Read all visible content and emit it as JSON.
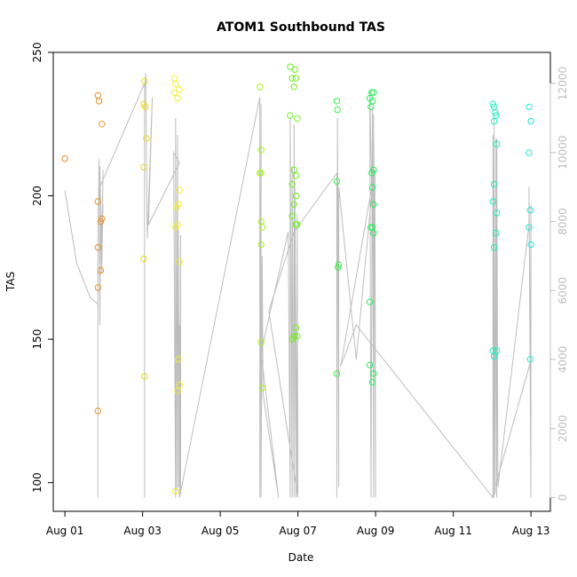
{
  "chart_data": {
    "type": "scatter",
    "title": "ATOM1 Southbound TAS",
    "xlabel": "Date",
    "ylabel": "TAS",
    "x_ticks": [
      "Aug 01",
      "Aug 03",
      "Aug 05",
      "Aug 07",
      "Aug 09",
      "Aug 11",
      "Aug 13"
    ],
    "x_tick_values": [
      1,
      3,
      5,
      7,
      9,
      11,
      13
    ],
    "xlim": [
      0.7,
      13.5
    ],
    "y_ticks": [
      100,
      150,
      200,
      250
    ],
    "ylim": [
      90,
      250
    ],
    "y2_ticks": [
      0,
      2000,
      4000,
      6000,
      8000,
      10000,
      12000
    ],
    "y2lim": [
      -400,
      12900
    ],
    "grid": false,
    "legend": "none",
    "colors": {
      "points_gradient": [
        "#e88a20",
        "#e8c21c",
        "#e8f01a",
        "#b6f01a",
        "#6af025",
        "#2af040",
        "#20e88a",
        "#20e8d8"
      ],
      "altitude_trace": "#bdbdbd",
      "axis": "#000000",
      "right_axis": "#bdbdbd"
    },
    "series": [
      {
        "color": "#e8902a",
        "points": [
          [
            1.0,
            213
          ],
          [
            1.85,
            235
          ],
          [
            1.88,
            233
          ],
          [
            1.95,
            225
          ],
          [
            1.85,
            198
          ],
          [
            1.92,
            191
          ],
          [
            1.95,
            192
          ],
          [
            1.85,
            182
          ],
          [
            1.92,
            174
          ],
          [
            1.85,
            168
          ],
          [
            1.85,
            125
          ]
        ]
      },
      {
        "color": "#e8d81e",
        "points": [
          [
            3.05,
            240
          ],
          [
            3.03,
            232
          ],
          [
            3.07,
            231
          ],
          [
            3.1,
            220
          ],
          [
            3.03,
            210
          ],
          [
            3.03,
            178
          ],
          [
            3.05,
            137
          ]
        ]
      },
      {
        "color": "#f2f02a",
        "points": [
          [
            3.82,
            241
          ],
          [
            3.85,
            239
          ],
          [
            3.95,
            237
          ],
          [
            3.82,
            236
          ],
          [
            3.9,
            234
          ],
          [
            3.95,
            202
          ],
          [
            3.92,
            197
          ],
          [
            3.88,
            196
          ],
          [
            3.9,
            190
          ],
          [
            3.85,
            189
          ],
          [
            3.95,
            177
          ],
          [
            3.92,
            143
          ],
          [
            3.95,
            134
          ],
          [
            3.9,
            132
          ],
          [
            3.85,
            97
          ]
        ]
      },
      {
        "color": "#a8f024",
        "points": [
          [
            6.02,
            238
          ],
          [
            6.05,
            216
          ],
          [
            6.05,
            208
          ],
          [
            6.02,
            208
          ],
          [
            6.05,
            191
          ],
          [
            6.08,
            189
          ],
          [
            6.05,
            183
          ],
          [
            6.05,
            149
          ],
          [
            6.08,
            133
          ]
        ]
      },
      {
        "color": "#70ee24",
        "points": [
          [
            6.8,
            245
          ],
          [
            6.92,
            244
          ],
          [
            6.85,
            241
          ],
          [
            6.95,
            241
          ],
          [
            6.9,
            238
          ],
          [
            6.8,
            228
          ],
          [
            6.98,
            227
          ],
          [
            6.9,
            209
          ],
          [
            6.95,
            207
          ],
          [
            6.85,
            204
          ],
          [
            6.95,
            200
          ],
          [
            6.9,
            197
          ],
          [
            6.85,
            193
          ],
          [
            6.95,
            190
          ],
          [
            6.98,
            190
          ],
          [
            6.85,
            150
          ],
          [
            6.9,
            151
          ],
          [
            6.95,
            154
          ],
          [
            6.98,
            151
          ]
        ]
      },
      {
        "color": "#38f040",
        "points": [
          [
            8.0,
            233
          ],
          [
            8.02,
            230
          ],
          [
            8.0,
            205
          ],
          [
            8.05,
            176
          ],
          [
            8.03,
            175
          ],
          [
            8.0,
            138
          ]
        ]
      },
      {
        "color": "#28ee58",
        "points": [
          [
            8.9,
            236
          ],
          [
            8.95,
            236
          ],
          [
            8.85,
            234
          ],
          [
            8.92,
            233
          ],
          [
            8.88,
            231
          ],
          [
            8.95,
            209
          ],
          [
            8.9,
            208
          ],
          [
            8.92,
            203
          ],
          [
            8.95,
            197
          ],
          [
            8.92,
            189
          ],
          [
            8.88,
            189
          ],
          [
            8.95,
            187
          ],
          [
            8.85,
            163
          ],
          [
            8.85,
            141
          ],
          [
            8.95,
            138
          ],
          [
            8.92,
            135
          ]
        ]
      },
      {
        "color": "#22ecc0",
        "points": [
          [
            12.02,
            232
          ],
          [
            12.05,
            231
          ],
          [
            12.08,
            229
          ],
          [
            12.1,
            228
          ],
          [
            12.05,
            226
          ],
          [
            12.12,
            218
          ],
          [
            12.05,
            204
          ],
          [
            12.02,
            198
          ],
          [
            12.12,
            194
          ],
          [
            12.1,
            187
          ],
          [
            12.05,
            182
          ],
          [
            12.02,
            146
          ],
          [
            12.12,
            146
          ],
          [
            12.05,
            144
          ]
        ]
      },
      {
        "color": "#22e8d8",
        "points": [
          [
            12.95,
            231
          ],
          [
            13.0,
            226
          ],
          [
            12.95,
            215
          ],
          [
            12.98,
            195
          ],
          [
            12.95,
            189
          ],
          [
            13.0,
            183
          ],
          [
            12.98,
            143
          ]
        ]
      }
    ],
    "altitude_trace": {
      "points": [
        [
          1.0,
          8900
        ],
        [
          1.3,
          6800
        ],
        [
          1.65,
          5800
        ],
        [
          1.85,
          5600
        ],
        [
          1.85,
          6200
        ],
        [
          1.85,
          4000
        ],
        [
          1.85,
          0
        ],
        [
          1.85,
          7200
        ],
        [
          1.88,
          9800
        ],
        [
          1.9,
          5000
        ],
        [
          1.92,
          8200
        ],
        [
          1.95,
          6500
        ],
        [
          1.98,
          9500
        ],
        [
          1.95,
          7000
        ],
        [
          1.9,
          9600
        ],
        [
          1.95,
          6800
        ],
        [
          1.98,
          8500
        ],
        [
          1.95,
          7500
        ],
        [
          1.9,
          9000
        ],
        [
          3.05,
          12000
        ],
        [
          3.05,
          0
        ],
        [
          3.05,
          11800
        ],
        [
          3.08,
          12300
        ],
        [
          3.1,
          9800
        ],
        [
          3.12,
          7500
        ],
        [
          3.25,
          11600
        ],
        [
          3.15,
          7900
        ],
        [
          3.95,
          9700
        ],
        [
          3.8,
          10000
        ],
        [
          3.85,
          0
        ],
        [
          3.85,
          11000
        ],
        [
          3.88,
          200
        ],
        [
          3.9,
          10500
        ],
        [
          3.92,
          300
        ],
        [
          3.92,
          7800
        ],
        [
          3.95,
          0
        ],
        [
          3.95,
          5000
        ],
        [
          3.98,
          100
        ],
        [
          3.98,
          7600
        ],
        [
          3.95,
          0
        ],
        [
          6.02,
          11600
        ],
        [
          6.02,
          0
        ],
        [
          6.05,
          11400
        ],
        [
          6.05,
          0
        ],
        [
          6.08,
          7000
        ],
        [
          6.1,
          3000
        ],
        [
          6.5,
          0
        ],
        [
          6.05,
          4200
        ],
        [
          6.75,
          7700
        ],
        [
          6.8,
          0
        ],
        [
          6.8,
          11000
        ],
        [
          6.85,
          0
        ],
        [
          6.85,
          9600
        ],
        [
          6.9,
          0
        ],
        [
          6.9,
          10800
        ],
        [
          6.95,
          0
        ],
        [
          6.92,
          9000
        ],
        [
          6.98,
          200
        ],
        [
          6.98,
          8200
        ],
        [
          7.0,
          0
        ],
        [
          6.25,
          5400
        ],
        [
          6.9,
          7700
        ],
        [
          8.0,
          9400
        ],
        [
          8.0,
          0
        ],
        [
          8.02,
          11000
        ],
        [
          8.05,
          300
        ],
        [
          8.05,
          9000
        ],
        [
          8.5,
          4000
        ],
        [
          8.9,
          8800
        ],
        [
          8.85,
          11800
        ],
        [
          8.88,
          0
        ],
        [
          8.92,
          11300
        ],
        [
          8.95,
          0
        ],
        [
          8.95,
          11100
        ],
        [
          9.0,
          0
        ],
        [
          8.98,
          9500
        ],
        [
          8.1,
          3800
        ],
        [
          8.5,
          5000
        ],
        [
          12.02,
          0
        ],
        [
          12.02,
          10500
        ],
        [
          12.05,
          0
        ],
        [
          12.05,
          11000
        ],
        [
          12.08,
          100
        ],
        [
          12.1,
          10400
        ],
        [
          12.12,
          0
        ],
        [
          12.12,
          10400
        ],
        [
          12.15,
          300
        ],
        [
          12.95,
          7900
        ],
        [
          12.95,
          9000
        ],
        [
          13.0,
          0
        ],
        [
          13.0,
          8500
        ],
        [
          12.98,
          3900
        ],
        [
          12.0,
          0
        ]
      ]
    }
  }
}
